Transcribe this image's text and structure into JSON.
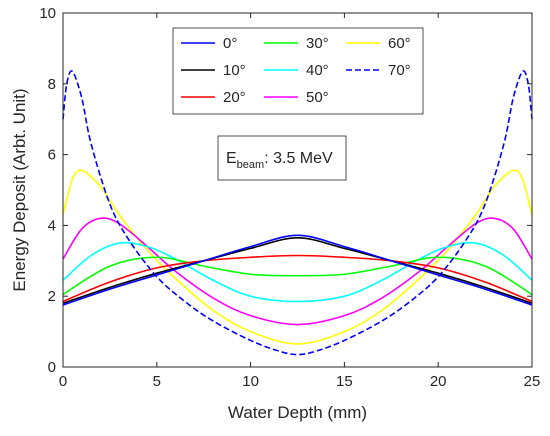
{
  "chart_data": {
    "type": "line",
    "xlabel": "Water Depth (mm)",
    "ylabel": "Energy Deposit (Arbt. Unit)",
    "xlim": [
      0,
      25
    ],
    "ylim": [
      0,
      10
    ],
    "xticks": [
      0,
      5,
      10,
      15,
      20,
      25
    ],
    "yticks": [
      0,
      2,
      4,
      6,
      8,
      10
    ],
    "grid": false,
    "legend_position": "top-center",
    "legend_columns": 3,
    "annotation": {
      "symbol": "E",
      "subscript": "beam",
      "text": ": 3.5 MeV"
    },
    "series": [
      {
        "name": "0°",
        "color": "#0000ff",
        "dash": "solid",
        "x": [
          0,
          2.5,
          5,
          7.5,
          10,
          12.5,
          15,
          17.5,
          20,
          22.5,
          25
        ],
        "y": [
          1.75,
          2.2,
          2.6,
          3.0,
          3.4,
          3.72,
          3.4,
          3.0,
          2.6,
          2.2,
          1.75
        ]
      },
      {
        "name": "10°",
        "color": "#000000",
        "dash": "solid",
        "x": [
          0,
          2.5,
          5,
          7.5,
          10,
          12.5,
          15,
          17.5,
          20,
          22.5,
          25
        ],
        "y": [
          1.8,
          2.25,
          2.65,
          3.0,
          3.35,
          3.65,
          3.35,
          3.0,
          2.65,
          2.25,
          1.8
        ]
      },
      {
        "name": "20°",
        "color": "#ff0000",
        "dash": "solid",
        "x": [
          0,
          2.5,
          5,
          7.5,
          10,
          12.5,
          15,
          17.5,
          20,
          22.5,
          25
        ],
        "y": [
          1.85,
          2.4,
          2.8,
          3.0,
          3.1,
          3.15,
          3.1,
          3.0,
          2.8,
          2.4,
          1.85
        ]
      },
      {
        "name": "30°",
        "color": "#00ff00",
        "dash": "solid",
        "x": [
          0,
          2.5,
          5,
          7.5,
          10,
          12.5,
          15,
          17.5,
          20,
          22.5,
          25
        ],
        "y": [
          2.05,
          2.85,
          3.1,
          2.85,
          2.62,
          2.58,
          2.62,
          2.85,
          3.1,
          2.85,
          2.05
        ]
      },
      {
        "name": "40°",
        "color": "#00ffff",
        "dash": "solid",
        "x": [
          0,
          1.5,
          3,
          4.5,
          6,
          8,
          10,
          12.5,
          15,
          17,
          19,
          20.5,
          22,
          23.5,
          25
        ],
        "y": [
          2.45,
          3.15,
          3.5,
          3.4,
          3.05,
          2.45,
          2.0,
          1.85,
          2.0,
          2.45,
          3.05,
          3.4,
          3.5,
          3.15,
          2.45
        ]
      },
      {
        "name": "50°",
        "color": "#ff00ff",
        "dash": "solid",
        "x": [
          0,
          1,
          2,
          3,
          4.5,
          6,
          8,
          10,
          12.5,
          15,
          17,
          19,
          20.5,
          22,
          23,
          24,
          25
        ],
        "y": [
          3.05,
          3.9,
          4.2,
          4.05,
          3.4,
          2.7,
          1.95,
          1.45,
          1.2,
          1.45,
          1.95,
          2.7,
          3.4,
          4.05,
          4.2,
          3.9,
          3.05
        ]
      },
      {
        "name": "60°",
        "color": "#ffff00",
        "dash": "solid",
        "x": [
          0,
          0.5,
          1,
          2,
          3,
          4.5,
          6,
          8,
          10,
          12.5,
          15,
          17,
          19,
          20.5,
          22,
          23,
          24,
          24.5,
          25
        ],
        "y": [
          4.3,
          5.3,
          5.55,
          5.1,
          4.3,
          3.3,
          2.5,
          1.6,
          1.0,
          0.65,
          1.0,
          1.6,
          2.5,
          3.3,
          4.3,
          5.1,
          5.55,
          5.3,
          4.3
        ]
      },
      {
        "name": "70°",
        "color": "#0000ff",
        "dash": "dashed",
        "x": [
          0,
          0.2,
          0.5,
          1,
          1.5,
          2.5,
          3.5,
          5,
          6.5,
          8,
          10,
          11.5,
          12.5,
          13.5,
          15,
          17,
          18.5,
          20,
          21.5,
          22.5,
          23.5,
          24,
          24.5,
          24.8,
          25
        ],
        "y": [
          7.0,
          8.0,
          8.35,
          7.6,
          6.3,
          4.6,
          3.6,
          2.55,
          1.85,
          1.3,
          0.75,
          0.45,
          0.35,
          0.45,
          0.75,
          1.3,
          1.85,
          2.55,
          3.6,
          4.6,
          6.3,
          7.6,
          8.35,
          8.0,
          7.0
        ]
      }
    ]
  }
}
